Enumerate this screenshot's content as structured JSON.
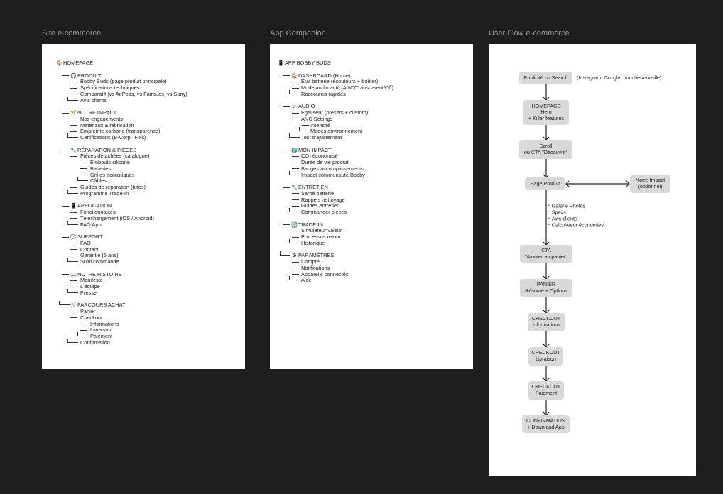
{
  "canvas": {
    "background": "#1e1e1e"
  },
  "frames": [
    {
      "title": "Site e-commerce",
      "lines": [
        {
          "t": "HOMEPAGE",
          "lvl": 0,
          "icon": "🏠",
          "icon_name": "house-icon"
        },
        null,
        {
          "t": "PRODUIT",
          "lvl": 1,
          "icon": "🎧",
          "icon_name": "headphones-icon"
        },
        {
          "t": "Bobby Buds (page produit principale)",
          "lvl": 2
        },
        {
          "t": "Spécifications techniques",
          "lvl": 2
        },
        {
          "t": "Comparatif (vs AirPods, vs Fairbuds, vs Sony)",
          "lvl": 2
        },
        {
          "t": "Avis clients",
          "lvl": 2,
          "last": true
        },
        null,
        {
          "t": "NOTRE IMPACT",
          "lvl": 1,
          "icon": "🌱",
          "icon_name": "seedling-icon"
        },
        {
          "t": "Nos engagements",
          "lvl": 2
        },
        {
          "t": "Matériaux & fabrication",
          "lvl": 2
        },
        {
          "t": "Empreinte carbone (transparence)",
          "lvl": 2
        },
        {
          "t": "Certifications (B-Corp, iFixit)",
          "lvl": 2,
          "last": true
        },
        null,
        {
          "t": "RÉPARATION & PIÈCES",
          "lvl": 1,
          "icon": "🔧",
          "icon_name": "wrench-icon"
        },
        {
          "t": "Pièces détachées (catalogue)",
          "lvl": 2
        },
        {
          "t": "Embouts silicone",
          "lvl": 3
        },
        {
          "t": "Batteries",
          "lvl": 3
        },
        {
          "t": "Grilles acoustiques",
          "lvl": 3
        },
        {
          "t": "Câbles",
          "lvl": 3,
          "last": true
        },
        {
          "t": "Guides de réparation (tutos)",
          "lvl": 2
        },
        {
          "t": "Programme Trade-In",
          "lvl": 2,
          "last": true
        },
        null,
        {
          "t": "APPLICATION",
          "lvl": 1,
          "icon": "📱",
          "icon_name": "phone-icon"
        },
        {
          "t": "Fonctionnalités",
          "lvl": 2
        },
        {
          "t": "Téléchargement (iOS / Android)",
          "lvl": 2
        },
        {
          "t": "FAQ App",
          "lvl": 2,
          "last": true
        },
        null,
        {
          "t": "SUPPORT",
          "lvl": 1,
          "icon": "💬",
          "icon_name": "speech-bubble-icon"
        },
        {
          "t": "FAQ",
          "lvl": 2
        },
        {
          "t": "Contact",
          "lvl": 2
        },
        {
          "t": "Garantie (5 ans)",
          "lvl": 2
        },
        {
          "t": "Suivi commande",
          "lvl": 2,
          "last": true
        },
        null,
        {
          "t": "NOTRE HISTOIRE",
          "lvl": 1,
          "icon": "📖",
          "icon_name": "book-icon"
        },
        {
          "t": "Manifeste",
          "lvl": 2
        },
        {
          "t": "L'équipe",
          "lvl": 2
        },
        {
          "t": "Presse",
          "lvl": 2,
          "last": true
        },
        null,
        {
          "t": "PARCOURS ACHAT",
          "lvl": 1,
          "icon": "🛒",
          "icon_name": "cart-icon",
          "last": true
        },
        {
          "t": "Panier",
          "lvl": 2
        },
        {
          "t": "Checkout",
          "lvl": 2
        },
        {
          "t": "Informations",
          "lvl": 3
        },
        {
          "t": "Livraison",
          "lvl": 3
        },
        {
          "t": "Paiement",
          "lvl": 3,
          "last": true
        },
        {
          "t": "Confirmation",
          "lvl": 2,
          "last": true
        }
      ]
    },
    {
      "title": "App Companion",
      "lines": [
        {
          "t": "APP BOBBY BUDS",
          "lvl": 0,
          "icon": "📱",
          "icon_name": "phone-icon"
        },
        null,
        {
          "t": "DASHBOARD (Home)",
          "lvl": 1,
          "icon": "🏠",
          "icon_name": "house-icon"
        },
        {
          "t": "État batterie (écouteurs + boîtier)",
          "lvl": 2
        },
        {
          "t": "Mode audio actif (ANC/Transparent/Off)",
          "lvl": 2
        },
        {
          "t": "Raccourcis rapides",
          "lvl": 2,
          "last": true
        },
        null,
        {
          "t": "AUDIO",
          "lvl": 1,
          "icon": "♫",
          "icon_name": "music-note-icon"
        },
        {
          "t": "Égaliseur (presets + custom)",
          "lvl": 2
        },
        {
          "t": "ANC Settings",
          "lvl": 2
        },
        {
          "t": "Intensité",
          "lvl": 3
        },
        {
          "t": "Modes environnement",
          "lvl": 3,
          "last": true
        },
        {
          "t": "Test d'ajustement",
          "lvl": 2,
          "last": true
        },
        null,
        {
          "t": "MON IMPACT",
          "lvl": 1,
          "icon": "🌍",
          "icon_name": "globe-icon"
        },
        {
          "t": "CO₂ économisé",
          "lvl": 2
        },
        {
          "t": "Durée de vie produit",
          "lvl": 2
        },
        {
          "t": "Badges accomplissements",
          "lvl": 2
        },
        {
          "t": "Impact communauté Bobby",
          "lvl": 2,
          "last": true
        },
        null,
        {
          "t": "ENTRETIEN",
          "lvl": 1,
          "icon": "🔧",
          "icon_name": "wrench-icon"
        },
        {
          "t": "Santé batterie",
          "lvl": 2
        },
        {
          "t": "Rappels nettoyage",
          "lvl": 2
        },
        {
          "t": "Guides entretien",
          "lvl": 2
        },
        {
          "t": "Commander pièces",
          "lvl": 2,
          "last": true
        },
        null,
        {
          "t": "TRADE-IN",
          "lvl": 1,
          "icon": "🔄",
          "icon_name": "refresh-icon"
        },
        {
          "t": "Simulateur valeur",
          "lvl": 2
        },
        {
          "t": "Processus retour",
          "lvl": 2
        },
        {
          "t": "Historique",
          "lvl": 2,
          "last": true
        },
        null,
        {
          "t": "PARAMÈTRES",
          "lvl": 1,
          "icon": "⚙",
          "icon_name": "gear-icon",
          "last": true
        },
        {
          "t": "Compte",
          "lvl": 2
        },
        {
          "t": "Notifications",
          "lvl": 2
        },
        {
          "t": "Appareils connectés",
          "lvl": 2
        },
        {
          "t": "Aide",
          "lvl": 2,
          "last": true
        }
      ]
    }
  ],
  "flow": {
    "title": "User Flow e-commerce",
    "nodes": [
      {
        "id": "pub",
        "lines": [
          "Publicité ou Search"
        ]
      },
      {
        "id": "home",
        "lines": [
          "HOMEPAGE",
          "Hero",
          "+ Killer features"
        ]
      },
      {
        "id": "scroll",
        "lines": [
          "Scroll",
          "ou CTA \"Découvrir\""
        ]
      },
      {
        "id": "produit",
        "lines": [
          "Page Produit"
        ]
      },
      {
        "id": "impact",
        "lines": [
          "Notre Impact",
          "(optionnel)"
        ]
      },
      {
        "id": "cta",
        "lines": [
          "CTA",
          "\"Ajouter au panier\""
        ]
      },
      {
        "id": "panier",
        "lines": [
          "PANIER",
          "Résumé + Options"
        ]
      },
      {
        "id": "info",
        "lines": [
          "CHECKOUT",
          "Informations"
        ]
      },
      {
        "id": "livraison",
        "lines": [
          "CHECKOUT",
          "Livraison"
        ]
      },
      {
        "id": "paiement",
        "lines": [
          "CHECKOUT",
          "Paiement"
        ]
      },
      {
        "id": "confirm",
        "lines": [
          "CONFIRMATION",
          "+ Download App"
        ]
      }
    ],
    "source_note": "(Instagram, Google, bouche-à-oreille)",
    "product_bullets": [
      "Galerie Photos",
      "Specs",
      "Avis clients",
      "Calculateur économies"
    ]
  }
}
